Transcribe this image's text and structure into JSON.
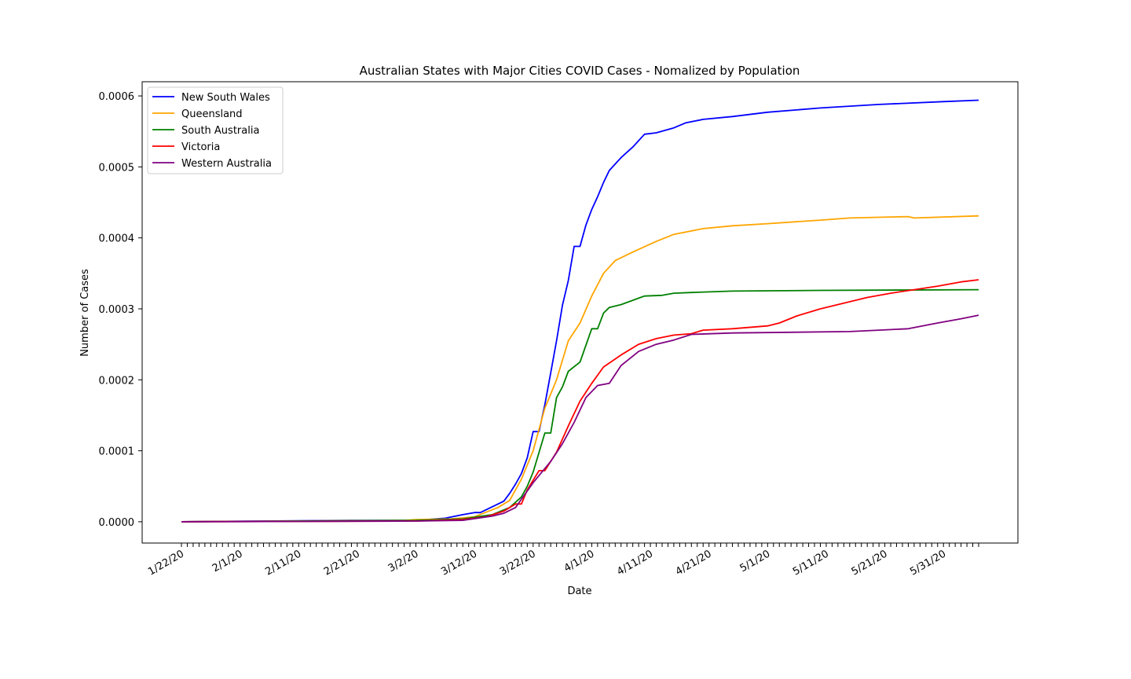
{
  "chart_data": {
    "type": "line",
    "title": "Australian States with Major Cities COVID Cases - Nomalized by Population",
    "xlabel": "Date",
    "ylabel": "Number of Cases",
    "x_start": "1/22/20",
    "x_end": "6/6/20",
    "x_tick_labels": [
      "1/22/20",
      "2/1/20",
      "2/11/20",
      "2/21/20",
      "3/2/20",
      "3/12/20",
      "3/22/20",
      "4/1/20",
      "4/11/20",
      "4/21/20",
      "5/1/20",
      "5/11/20",
      "5/21/20",
      "5/31/20"
    ],
    "y_ticks": [
      "0.0000",
      "0.0001",
      "0.0002",
      "0.0003",
      "0.0004",
      "0.0005",
      "0.0006"
    ],
    "ylim": [
      -3e-05,
      0.00062
    ],
    "grid": false,
    "legend_position": "top-left",
    "series": [
      {
        "name": "New South Wales",
        "color": "#0000ff",
        "points": [
          [
            "1/22/20",
            0
          ],
          [
            "2/20/20",
            2e-06
          ],
          [
            "3/2/20",
            2e-06
          ],
          [
            "3/7/20",
            5e-06
          ],
          [
            "3/10/20",
            1e-05
          ],
          [
            "3/12/20",
            1.3e-05
          ],
          [
            "3/13/20",
            1.3e-05
          ],
          [
            "3/15/20",
            2.1e-05
          ],
          [
            "3/17/20",
            2.9e-05
          ],
          [
            "3/18/20",
            4e-05
          ],
          [
            "3/19/20",
            5.3e-05
          ],
          [
            "3/20/20",
            6.8e-05
          ],
          [
            "3/21/20",
            9e-05
          ],
          [
            "3/22/20",
            0.000127
          ],
          [
            "3/23/20",
            0.000127
          ],
          [
            "3/24/20",
            0.000165
          ],
          [
            "3/25/20",
            0.00021
          ],
          [
            "3/26/20",
            0.000255
          ],
          [
            "3/27/20",
            0.000305
          ],
          [
            "3/28/20",
            0.00034
          ],
          [
            "3/29/20",
            0.000388
          ],
          [
            "3/30/20",
            0.000388
          ],
          [
            "3/31/20",
            0.000418
          ],
          [
            "4/1/20",
            0.00044
          ],
          [
            "4/2/20",
            0.000458
          ],
          [
            "4/3/20",
            0.000478
          ],
          [
            "4/4/20",
            0.000495
          ],
          [
            "4/6/20",
            0.000513
          ],
          [
            "4/8/20",
            0.000528
          ],
          [
            "4/10/20",
            0.000546
          ],
          [
            "4/12/20",
            0.000548
          ],
          [
            "4/15/20",
            0.000555
          ],
          [
            "4/17/20",
            0.000562
          ],
          [
            "4/20/20",
            0.000567
          ],
          [
            "4/25/20",
            0.000571
          ],
          [
            "5/1/20",
            0.000577
          ],
          [
            "5/10/20",
            0.000583
          ],
          [
            "5/20/20",
            0.000588
          ],
          [
            "5/31/20",
            0.000592
          ],
          [
            "6/6/20",
            0.000594
          ]
        ]
      },
      {
        "name": "Queensland",
        "color": "#ffa500",
        "points": [
          [
            "1/22/20",
            0
          ],
          [
            "2/29/20",
            2e-06
          ],
          [
            "3/2/20",
            3e-06
          ],
          [
            "3/8/20",
            4e-06
          ],
          [
            "3/12/20",
            7e-06
          ],
          [
            "3/16/20",
            2e-05
          ],
          [
            "3/18/20",
            3e-05
          ],
          [
            "3/20/20",
            6e-05
          ],
          [
            "3/22/20",
            0.0001
          ],
          [
            "3/24/20",
            0.00016
          ],
          [
            "3/26/20",
            0.0002
          ],
          [
            "3/28/20",
            0.000255
          ],
          [
            "3/30/20",
            0.00028
          ],
          [
            "4/1/20",
            0.000318
          ],
          [
            "4/3/20",
            0.00035
          ],
          [
            "4/5/20",
            0.000368
          ],
          [
            "4/8/20",
            0.00038
          ],
          [
            "4/12/20",
            0.000395
          ],
          [
            "4/15/20",
            0.000405
          ],
          [
            "4/20/20",
            0.000413
          ],
          [
            "4/25/20",
            0.000417
          ],
          [
            "5/1/20",
            0.00042
          ],
          [
            "5/10/20",
            0.000425
          ],
          [
            "5/15/20",
            0.000428
          ],
          [
            "5/25/20",
            0.00043
          ],
          [
            "5/26/20",
            0.000428
          ],
          [
            "6/6/20",
            0.000431
          ]
        ]
      },
      {
        "name": "South Australia",
        "color": "#008000",
        "points": [
          [
            "1/22/20",
            0
          ],
          [
            "3/2/20",
            2e-06
          ],
          [
            "3/10/20",
            4e-06
          ],
          [
            "3/15/20",
            1e-05
          ],
          [
            "3/18/20",
            2e-05
          ],
          [
            "3/20/20",
            3.5e-05
          ],
          [
            "3/21/20",
            5e-05
          ],
          [
            "3/22/20",
            7e-05
          ],
          [
            "3/24/20",
            0.000125
          ],
          [
            "3/25/20",
            0.000125
          ],
          [
            "3/26/20",
            0.000175
          ],
          [
            "3/27/20",
            0.00019
          ],
          [
            "3/28/20",
            0.000212
          ],
          [
            "3/30/20",
            0.000225
          ],
          [
            "4/1/20",
            0.000272
          ],
          [
            "4/2/20",
            0.000272
          ],
          [
            "4/3/20",
            0.000294
          ],
          [
            "4/4/20",
            0.000302
          ],
          [
            "4/6/20",
            0.000306
          ],
          [
            "4/9/20",
            0.000315
          ],
          [
            "4/10/20",
            0.000318
          ],
          [
            "4/13/20",
            0.000319
          ],
          [
            "4/15/20",
            0.000322
          ],
          [
            "4/18/20",
            0.000323
          ],
          [
            "4/25/20",
            0.000325
          ],
          [
            "5/10/20",
            0.000326
          ],
          [
            "6/6/20",
            0.000327
          ]
        ]
      },
      {
        "name": "Victoria",
        "color": "#ff0000",
        "points": [
          [
            "1/22/20",
            0
          ],
          [
            "3/2/20",
            1e-06
          ],
          [
            "3/10/20",
            3e-06
          ],
          [
            "3/14/20",
            7e-06
          ],
          [
            "3/17/20",
            1.5e-05
          ],
          [
            "3/19/20",
            2.5e-05
          ],
          [
            "3/20/20",
            2.5e-05
          ],
          [
            "3/21/20",
            4.5e-05
          ],
          [
            "3/23/20",
            7.2e-05
          ],
          [
            "3/24/20",
            7.2e-05
          ],
          [
            "3/26/20",
            9.8e-05
          ],
          [
            "3/28/20",
            0.000135
          ],
          [
            "3/30/20",
            0.00017
          ],
          [
            "4/1/20",
            0.000195
          ],
          [
            "4/3/20",
            0.000218
          ],
          [
            "4/6/20",
            0.000235
          ],
          [
            "4/9/20",
            0.00025
          ],
          [
            "4/12/20",
            0.000258
          ],
          [
            "4/15/20",
            0.000263
          ],
          [
            "4/18/20",
            0.000265
          ],
          [
            "4/20/20",
            0.00027
          ],
          [
            "4/25/20",
            0.000272
          ],
          [
            "5/1/20",
            0.000276
          ],
          [
            "5/3/20",
            0.00028
          ],
          [
            "5/6/20",
            0.00029
          ],
          [
            "5/10/20",
            0.0003
          ],
          [
            "5/14/20",
            0.000308
          ],
          [
            "5/18/20",
            0.000316
          ],
          [
            "5/22/20",
            0.000322
          ],
          [
            "5/26/20",
            0.000327
          ],
          [
            "5/30/20",
            0.000332
          ],
          [
            "6/3/20",
            0.000338
          ],
          [
            "6/6/20",
            0.000341
          ]
        ]
      },
      {
        "name": "Western Australia",
        "color": "#800080",
        "points": [
          [
            "1/22/20",
            0
          ],
          [
            "3/2/20",
            1e-06
          ],
          [
            "3/10/20",
            2e-06
          ],
          [
            "3/15/20",
            8e-06
          ],
          [
            "3/17/20",
            1.2e-05
          ],
          [
            "3/19/20",
            2e-05
          ],
          [
            "3/22/20",
            5.5e-05
          ],
          [
            "3/25/20",
            8.5e-05
          ],
          [
            "3/27/20",
            0.00011
          ],
          [
            "3/29/20",
            0.00014
          ],
          [
            "3/31/20",
            0.000175
          ],
          [
            "4/2/20",
            0.000192
          ],
          [
            "4/4/20",
            0.000195
          ],
          [
            "4/6/20",
            0.00022
          ],
          [
            "4/9/20",
            0.00024
          ],
          [
            "4/12/20",
            0.00025
          ],
          [
            "4/15/20",
            0.000256
          ],
          [
            "4/18/20",
            0.000264
          ],
          [
            "4/25/20",
            0.000266
          ],
          [
            "5/5/20",
            0.000267
          ],
          [
            "5/15/20",
            0.000268
          ],
          [
            "5/20/20",
            0.00027
          ],
          [
            "5/25/20",
            0.000272
          ],
          [
            "5/30/20",
            0.00028
          ],
          [
            "6/3/20",
            0.000286
          ],
          [
            "6/6/20",
            0.000291
          ]
        ]
      }
    ]
  }
}
